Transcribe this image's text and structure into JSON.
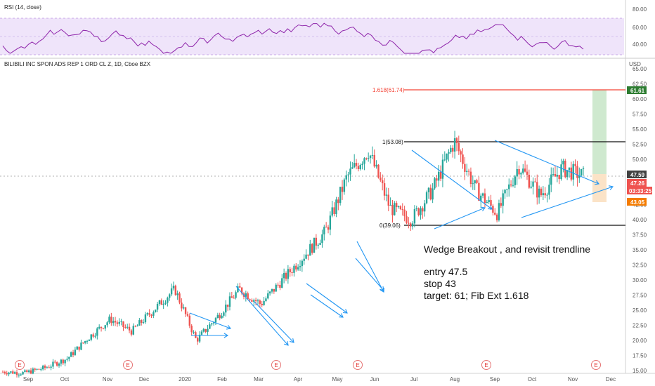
{
  "rsi_panel": {
    "title": "RSI (14, close)",
    "ticks": [
      "80.00",
      "60.00",
      "40.00"
    ]
  },
  "main_panel": {
    "title": "BILIBILI INC SPON ADS REP 1 ORD CL Z, 1D, Cboe BZX",
    "currency": "USD",
    "price_ticks": [
      "65.00",
      "62.50",
      "60.00",
      "57.50",
      "55.00",
      "52.50",
      "50.00",
      "47.50",
      "45.00",
      "42.50",
      "40.00",
      "37.50",
      "35.00",
      "32.50",
      "30.00",
      "27.50",
      "25.00",
      "22.50",
      "20.00",
      "17.50",
      "15.00"
    ],
    "date_ticks": [
      "Sep",
      "Oct",
      "Nov",
      "Dec",
      "2020",
      "Feb",
      "Mar",
      "Apr",
      "May",
      "Jun",
      "Jul",
      "Aug",
      "Sep",
      "Oct",
      "Nov",
      "Dec"
    ],
    "fib": {
      "ext_label": "1.618(61.74)",
      "top_label": "1(53.08)",
      "bottom_label": "0(39.06)"
    },
    "price_tags": {
      "target": "61.61",
      "last": "47.59",
      "current": "47.26",
      "countdown": "03:33:25",
      "stop": "43.05"
    },
    "event_marker": "E",
    "annotation": {
      "headline": "Wedge Breakout , and revisit trendline",
      "entry": "entry 47.5",
      "stop": "stop 43",
      "target": "target: 61; Fib Ext 1.618"
    },
    "colors": {
      "up": "#26a69a",
      "down": "#ef5350",
      "trendline": "#2196f3",
      "fib_ext": "#f44336",
      "rsi_line": "#7b1fa2",
      "rsi_band": "#ede3f7",
      "target_tag": "#2e7d32",
      "stop_tag": "#f57c00"
    }
  },
  "chart_data": {
    "type": "candlestick",
    "title": "BILIBILI INC SPON ADS REP 1 ORD CL Z, 1D, Cboe BZX",
    "ylabel": "USD",
    "ylim": [
      14.5,
      66
    ],
    "series": [
      {
        "name": "price",
        "points": [
          [
            "Sep 2019",
            14.8
          ],
          [
            "Oct 2019",
            14.6
          ],
          [
            "Nov 2019",
            15.5
          ],
          [
            "Dec 2019",
            17.0
          ],
          [
            "Jan 2020",
            20.5
          ],
          [
            "Jan 2020",
            23.5
          ],
          [
            "Feb 2020",
            21.5
          ],
          [
            "Feb 2020",
            25.0
          ],
          [
            "Mar 2020",
            28.5
          ],
          [
            "Mar 2020",
            20.0
          ],
          [
            "Apr 2020",
            24.0
          ],
          [
            "Apr 2020",
            28.5
          ],
          [
            "May 2020",
            26.0
          ],
          [
            "May 2020",
            30.0
          ],
          [
            "Jun 2020",
            34.0
          ],
          [
            "Jun 2020",
            38.0
          ],
          [
            "Jul 2020",
            47.0
          ],
          [
            "Jul 2020",
            51.5
          ],
          [
            "Jul 2020",
            42.0
          ],
          [
            "Aug 2020",
            40.0
          ],
          [
            "Aug 2020",
            45.0
          ],
          [
            "Sep 2020",
            53.0
          ],
          [
            "Sep 2020",
            45.0
          ],
          [
            "Oct 2020",
            41.0
          ],
          [
            "Oct 2020",
            49.0
          ],
          [
            "Oct 2020",
            44.0
          ],
          [
            "Nov 2020",
            48.5
          ],
          [
            "Nov 2020",
            47.26
          ]
        ]
      }
    ],
    "rsi": {
      "ylim": [
        30,
        85
      ],
      "levels": [
        70,
        30
      ]
    }
  }
}
